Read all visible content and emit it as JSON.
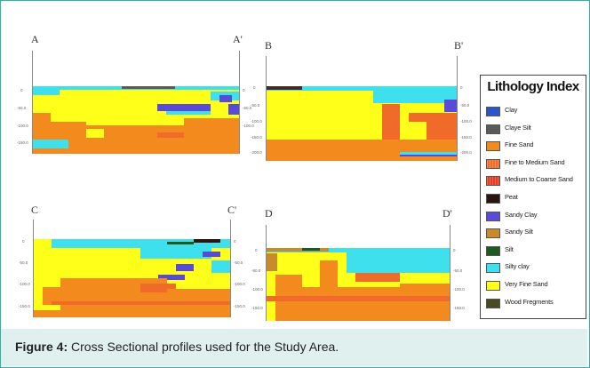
{
  "caption": {
    "label": "Figure 4:",
    "text": " Cross Sectional profiles used for the Study Area."
  },
  "sections": [
    {
      "start": "A",
      "end": "A'"
    },
    {
      "start": "B",
      "end": "B'"
    },
    {
      "start": "C",
      "end": "C'"
    },
    {
      "start": "D",
      "end": "D'"
    }
  ],
  "depth_ticks": [
    "0",
    "-50.0",
    "-100.0",
    "-150.0",
    "-200.0"
  ],
  "legend": {
    "title": "Lithology Index",
    "items": [
      {
        "label": "Clay",
        "color": "#2c56c8",
        "icon": "clay-swatch"
      },
      {
        "label": "Claye Silt",
        "color": "#5a5a5a",
        "icon": "claye-silt-swatch"
      },
      {
        "label": "Fine Sand",
        "color": "#f28a1e",
        "icon": "fine-sand-swatch"
      },
      {
        "label": "Fine to Medium Sand",
        "color": "#f06a2a",
        "icon": "fine-to-medium-sand-swatch"
      },
      {
        "label": "Medium to Coarse Sand",
        "color": "#e83a20",
        "icon": "medium-to-coarse-sand-swatch"
      },
      {
        "label": "Peat",
        "color": "#2a1410",
        "icon": "peat-swatch"
      },
      {
        "label": "Sandy Clay",
        "color": "#5a4ad8",
        "icon": "sandy-clay-swatch"
      },
      {
        "label": "Sandy Silt",
        "color": "#c88a2a",
        "icon": "sandy-silt-swatch"
      },
      {
        "label": "Silt",
        "color": "#1e5a1e",
        "icon": "silt-swatch"
      },
      {
        "label": "Silty clay",
        "color": "#3fe0ee",
        "icon": "silty-clay-swatch"
      },
      {
        "label": "Very Fine Sand",
        "color": "#ffff1a",
        "icon": "very-fine-sand-swatch"
      },
      {
        "label": "Wood Fregments",
        "color": "#4a4a22",
        "icon": "wood-fragments-swatch"
      }
    ]
  }
}
